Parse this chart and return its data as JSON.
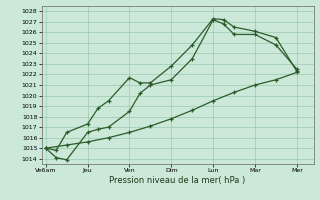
{
  "xlabel": "Pression niveau de la mer( hPa )",
  "background_color": "#cce8d8",
  "grid_color": "#99ccb0",
  "line_color": "#2a5c2a",
  "ylim": [
    1013.5,
    1028.5
  ],
  "yticks": [
    1014,
    1015,
    1016,
    1017,
    1018,
    1019,
    1020,
    1021,
    1022,
    1023,
    1024,
    1025,
    1026,
    1027,
    1028
  ],
  "xtick_labels": [
    "Ve6am",
    "Jeu",
    "Ven",
    "Dim",
    "Lun",
    "Mar",
    "Mer"
  ],
  "xtick_positions": [
    0,
    1,
    2,
    3,
    4,
    5,
    6
  ],
  "xlim": [
    -0.1,
    6.4
  ],
  "line1_x": [
    0,
    0.25,
    0.5,
    1.0,
    1.25,
    1.5,
    2.0,
    2.25,
    2.5,
    3.0,
    3.5,
    4.0,
    4.25,
    4.5,
    5.0,
    5.5,
    6.0
  ],
  "line1_y": [
    1015.0,
    1014.8,
    1016.5,
    1017.3,
    1018.8,
    1019.5,
    1021.7,
    1021.2,
    1021.2,
    1022.8,
    1024.8,
    1027.3,
    1027.2,
    1026.5,
    1026.1,
    1025.5,
    1022.3
  ],
  "line2_x": [
    0,
    0.25,
    0.5,
    1.0,
    1.25,
    1.5,
    2.0,
    2.25,
    2.5,
    3.0,
    3.5,
    4.0,
    4.25,
    4.5,
    5.0,
    5.5,
    6.0
  ],
  "line2_y": [
    1015.0,
    1014.1,
    1013.9,
    1016.5,
    1016.8,
    1017.0,
    1018.5,
    1020.2,
    1021.0,
    1021.5,
    1023.5,
    1027.2,
    1026.8,
    1025.8,
    1025.8,
    1024.8,
    1022.5
  ],
  "line3_x": [
    0,
    0.5,
    1.0,
    1.5,
    2.0,
    2.5,
    3.0,
    3.5,
    4.0,
    4.5,
    5.0,
    5.5,
    6.0
  ],
  "line3_y": [
    1015.0,
    1015.3,
    1015.6,
    1016.0,
    1016.5,
    1017.1,
    1017.8,
    1018.6,
    1019.5,
    1020.3,
    1021.0,
    1021.5,
    1022.2
  ],
  "marker": "+",
  "markersize": 3.5,
  "linewidth": 0.9
}
